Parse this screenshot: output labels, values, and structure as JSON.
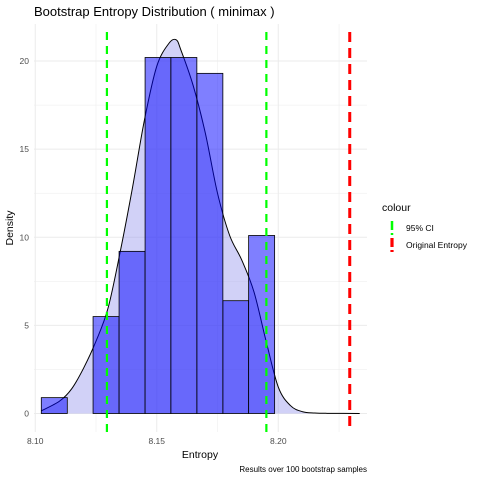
{
  "chart_data": {
    "type": "histogram",
    "title": "Bootstrap Entropy Distribution ( minimax )",
    "xlabel": "Entropy",
    "ylabel": "Density",
    "caption": "Results over 100 bootstrap samples",
    "xlim": [
      8.0995,
      8.2365
    ],
    "ylim": [
      -1.05,
      22.1
    ],
    "x_ticks": [
      8.1,
      8.15,
      8.2
    ],
    "x_tick_labels": [
      "8.10",
      "8.15",
      "8.20"
    ],
    "y_ticks": [
      0,
      5,
      10,
      15,
      20
    ],
    "y_tick_labels": [
      "0",
      "5",
      "10",
      "15",
      "20"
    ],
    "grid": true,
    "bins": [
      {
        "x0": 8.1025,
        "x1": 8.1132,
        "density": 0.9
      },
      {
        "x0": 8.1132,
        "x1": 8.1238,
        "density": 0.0
      },
      {
        "x0": 8.1238,
        "x1": 8.1345,
        "density": 5.5
      },
      {
        "x0": 8.1345,
        "x1": 8.1452,
        "density": 9.2
      },
      {
        "x0": 8.1452,
        "x1": 8.1558,
        "density": 20.2
      },
      {
        "x0": 8.1558,
        "x1": 8.1665,
        "density": 20.2
      },
      {
        "x0": 8.1665,
        "x1": 8.1772,
        "density": 19.3
      },
      {
        "x0": 8.1772,
        "x1": 8.1878,
        "density": 6.4
      },
      {
        "x0": 8.1878,
        "x1": 8.1985,
        "density": 10.1
      }
    ],
    "density_curve": {
      "x": [
        8.1025,
        8.11,
        8.115,
        8.12,
        8.125,
        8.13,
        8.135,
        8.14,
        8.145,
        8.15,
        8.155,
        8.158,
        8.16,
        8.165,
        8.17,
        8.175,
        8.18,
        8.185,
        8.19,
        8.195,
        8.2,
        8.205,
        8.21,
        8.215,
        8.22,
        8.2335
      ],
      "y": [
        0.15,
        0.7,
        1.4,
        2.6,
        4.1,
        6.0,
        9.2,
        12.8,
        16.7,
        19.7,
        21.0,
        21.2,
        20.6,
        18.6,
        15.9,
        12.5,
        10.1,
        8.7,
        6.9,
        4.1,
        1.5,
        0.45,
        0.1,
        0.03,
        0.01,
        0.0
      ]
    },
    "vlines": [
      {
        "x": 8.1295,
        "series": "95% CI",
        "color": "#00ff00"
      },
      {
        "x": 8.1951,
        "series": "95% CI",
        "color": "#00ff00"
      },
      {
        "x": 8.2294,
        "series": "Original Entropy",
        "color": "#ff0000"
      }
    ],
    "legend": {
      "title": "colour",
      "position": "right",
      "items": [
        {
          "label": "95% CI",
          "color": "#00ff00"
        },
        {
          "label": "Original Entropy",
          "color": "#ff0000"
        }
      ]
    },
    "colors": {
      "bar_fill": "#0000ff",
      "bar_fill_opacity": 0.5,
      "bar_stroke": "#000000",
      "density_fill": "#9999ee",
      "density_fill_opacity": 0.45,
      "density_stroke": "#000000",
      "grid": "#ebebeb"
    }
  }
}
